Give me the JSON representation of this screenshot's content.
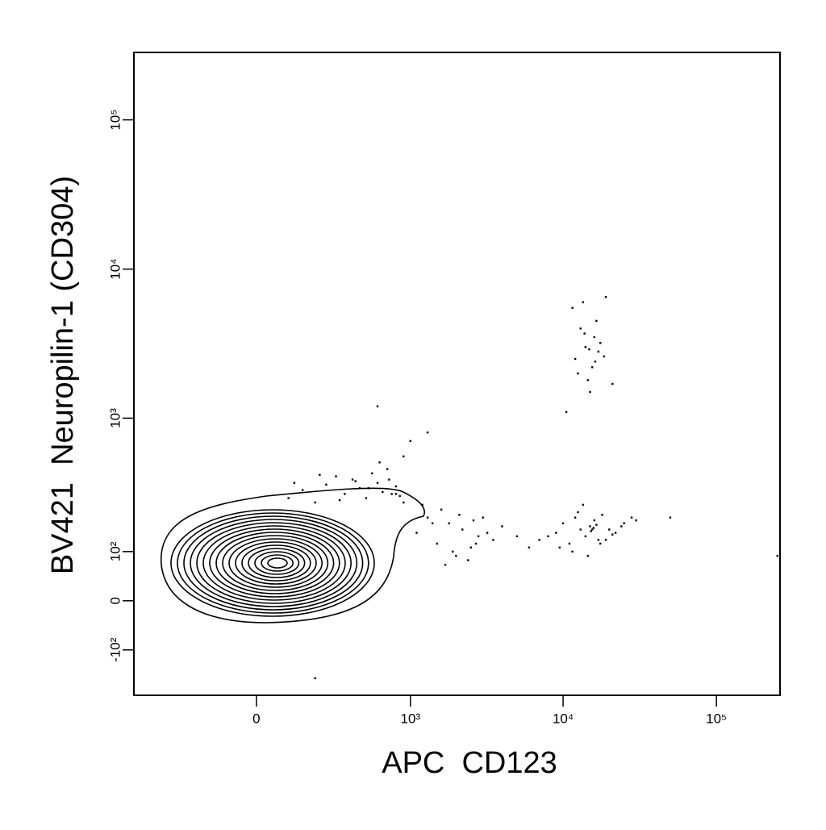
{
  "chart_data": {
    "type": "scatter",
    "scale": "biexponential",
    "color": "#000000",
    "x_label": "APC  CD123",
    "y_label": "BV421  Neuropilin-1 (CD304)",
    "xlim": [
      -614,
      260000
    ],
    "ylim": [
      -244,
      283000
    ],
    "xticks": [
      0,
      {
        "value": 1000,
        "label": "10³"
      },
      {
        "value": 10000,
        "label": "10⁴"
      },
      {
        "value": 100000,
        "label": "10⁵"
      }
    ],
    "yticks": [
      {
        "value": -100,
        "label": "-10²"
      },
      0,
      {
        "value": 100,
        "label": "10²"
      },
      {
        "value": 1000,
        "label": "10³"
      },
      {
        "value": 10000,
        "label": "10⁴"
      },
      {
        "value": 100000,
        "label": "10⁵"
      }
    ],
    "x": [
      12000,
      14000,
      15500,
      17000,
      13000,
      16000,
      18500,
      14500,
      11500,
      13500,
      16500,
      19000,
      15000,
      12500,
      17500,
      21000,
      10500,
      14800,
      16200,
      13800,
      9000,
      10000,
      11000,
      12000,
      13000,
      14000,
      15000,
      16000,
      17000,
      18000,
      20000,
      22000,
      25000,
      28000,
      8000,
      9500,
      12500,
      14500,
      15500,
      16500,
      19000,
      21000,
      24000,
      11500,
      13500,
      15200,
      15800,
      17500,
      7000,
      30000,
      1100,
      1300,
      1500,
      1800,
      2000,
      2200,
      2500,
      2800,
      3000,
      3500,
      4000,
      1200,
      1600,
      1900,
      2400,
      2700,
      3200,
      5000,
      6000,
      1400,
      1700,
      2100,
      2600,
      900,
      800,
      100,
      150,
      200,
      250,
      300,
      350,
      400,
      450,
      500,
      550,
      600,
      650,
      700,
      750,
      800,
      850,
      120,
      220,
      320,
      420,
      520,
      620,
      720,
      900,
      1000,
      600,
      1300,
      50000,
      250000,
      200
    ],
    "values": [
      2500,
      3000,
      2200,
      2800,
      4000,
      3500,
      2600,
      1800,
      5500,
      6000,
      4500,
      6500,
      1500,
      2000,
      3200,
      1700,
      1100,
      2900,
      2400,
      3700,
      150,
      180,
      120,
      200,
      160,
      140,
      170,
      190,
      130,
      210,
      160,
      150,
      180,
      200,
      140,
      110,
      220,
      90,
      160,
      175,
      130,
      145,
      170,
      100,
      250,
      155,
      165,
      120,
      130,
      190,
      150,
      200,
      120,
      180,
      90,
      160,
      110,
      140,
      200,
      130,
      170,
      250,
      230,
      100,
      80,
      120,
      150,
      140,
      110,
      180,
      70,
      210,
      190,
      260,
      300,
      280,
      320,
      260,
      350,
      400,
      300,
      380,
      330,
      280,
      420,
      360,
      310,
      450,
      300,
      340,
      290,
      360,
      410,
      270,
      370,
      330,
      500,
      380,
      550,
      700,
      1200,
      800,
      200,
      90,
      -180
    ]
  }
}
